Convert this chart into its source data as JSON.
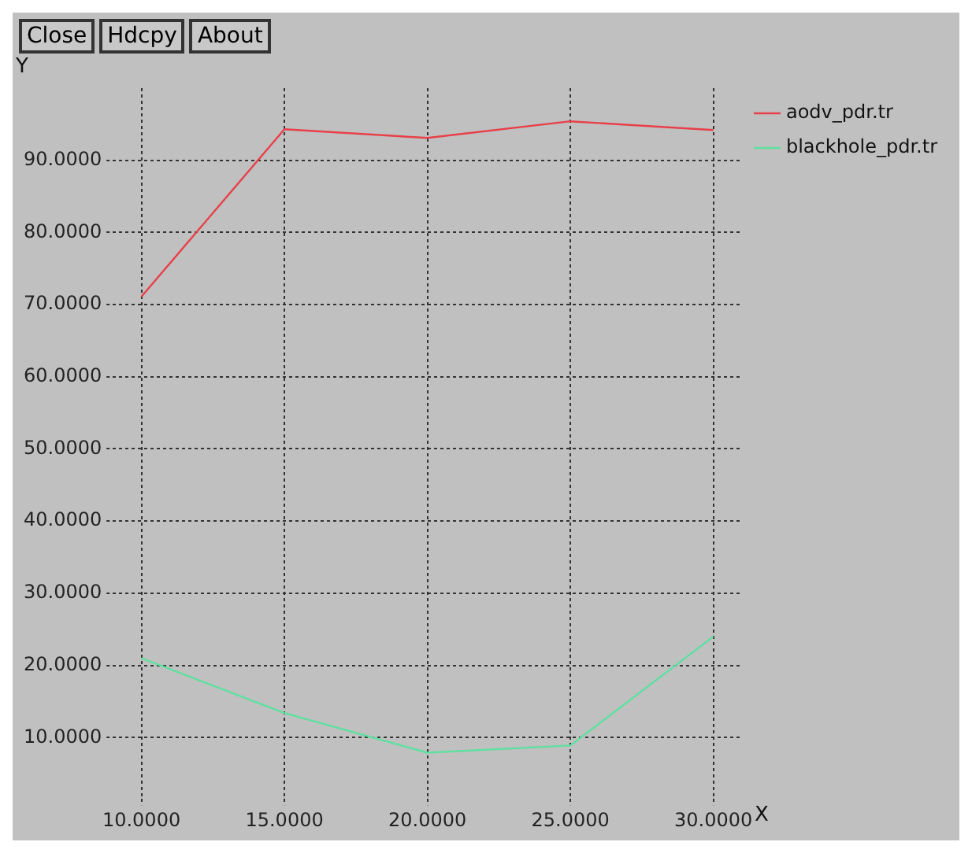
{
  "chart_data": {
    "type": "line",
    "xlabel": "X",
    "ylabel": "Y",
    "annotations": [
      "Close",
      "Hdcpy",
      "About"
    ],
    "x": [
      10,
      15,
      20,
      25,
      30
    ],
    "series": [
      {
        "name": "aodv_pdr.tr",
        "color": "#e8404a",
        "values": [
          71.1,
          94.3,
          93.1,
          95.4,
          94.2
        ]
      },
      {
        "name": "blackhole_pdr.tr",
        "color": "#5ee0a0",
        "values": [
          21.0,
          13.4,
          7.9,
          8.9,
          24.0
        ]
      }
    ],
    "xlim": [
      9,
      31
    ],
    "ylim": [
      1.5,
      100
    ],
    "xticks": [
      {
        "value": 10,
        "label": "10.0000"
      },
      {
        "value": 15,
        "label": "15.0000"
      },
      {
        "value": 20,
        "label": "20.0000"
      },
      {
        "value": 25,
        "label": "25.0000"
      },
      {
        "value": 30,
        "label": "30.0000"
      }
    ],
    "yticks": [
      {
        "value": 10,
        "label": "10.0000"
      },
      {
        "value": 20,
        "label": "20.0000"
      },
      {
        "value": 30,
        "label": "30.0000"
      },
      {
        "value": 40,
        "label": "40.0000"
      },
      {
        "value": 50,
        "label": "50.0000"
      },
      {
        "value": 60,
        "label": "60.0000"
      },
      {
        "value": 70,
        "label": "70.0000"
      },
      {
        "value": 80,
        "label": "80.0000"
      },
      {
        "value": 90,
        "label": "90.0000"
      }
    ],
    "grid": true,
    "legend": "top right",
    "marker": "none",
    "line_style": "solid"
  }
}
